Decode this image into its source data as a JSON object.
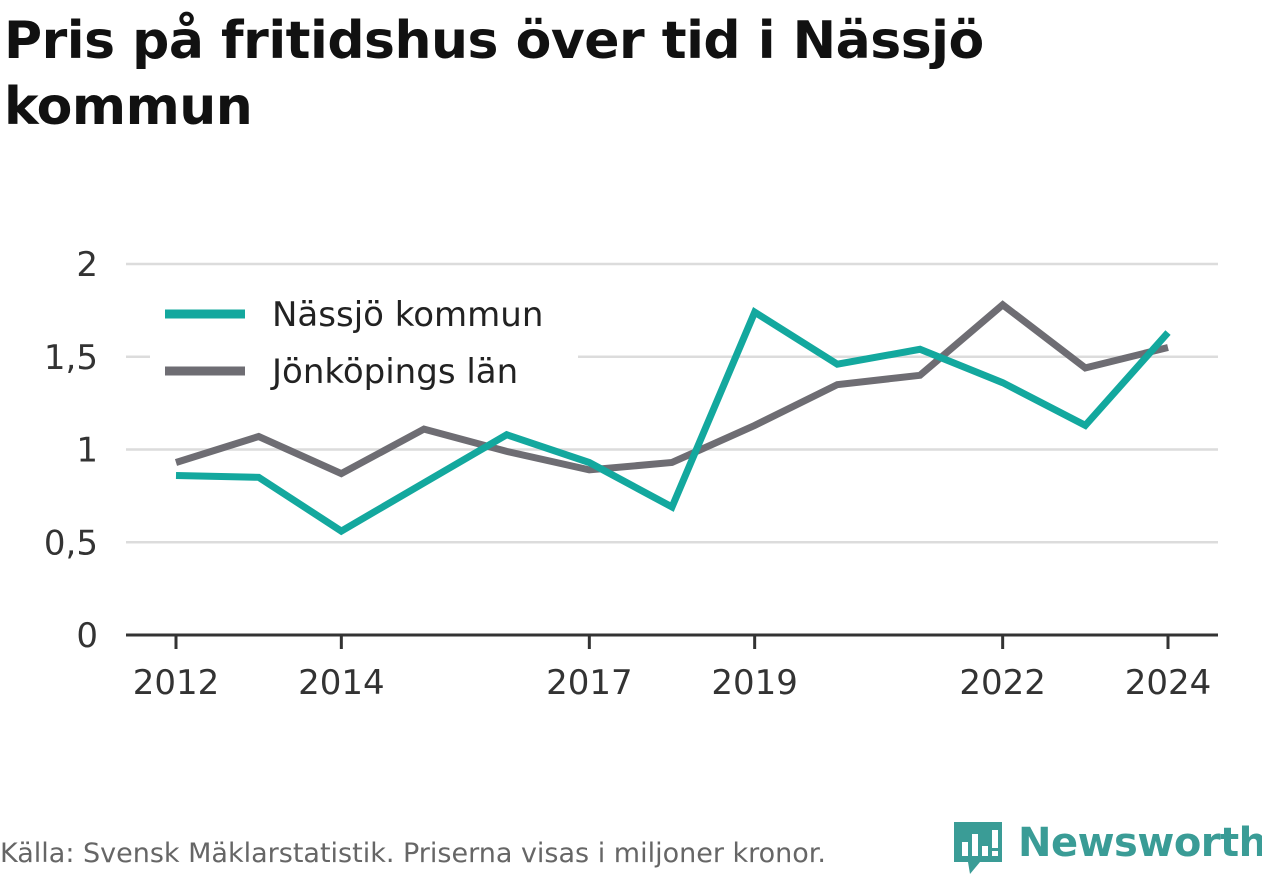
{
  "title": "Pris på fritidshus över tid i Nässjö kommun",
  "source": "Källa: Svensk Mäklarstatistik. Priserna visas i miljoner kronor.",
  "brand": {
    "name": "Newsworthy",
    "icon": "newsworthy-logo-icon",
    "color": "#3a9c96"
  },
  "chart_data": {
    "type": "line",
    "title": "Pris på fritidshus över tid i Nässjö kommun",
    "xlabel": "",
    "ylabel": "",
    "x": [
      2012,
      2013,
      2014,
      2015,
      2016,
      2017,
      2018,
      2019,
      2020,
      2021,
      2022,
      2023,
      2024
    ],
    "xticks": [
      2012,
      2014,
      2017,
      2019,
      2022,
      2024
    ],
    "xtick_labels": [
      "2012",
      "2014",
      "2017",
      "2019",
      "2022",
      "2024"
    ],
    "yticks": [
      0,
      0.5,
      1,
      1.5,
      2
    ],
    "ytick_labels": [
      "0",
      "0,5",
      "1",
      "1,5",
      "2"
    ],
    "ylim": [
      0,
      2
    ],
    "grid": true,
    "legend_position": "top-left",
    "series": [
      {
        "name": "Nässjö kommun",
        "color": "#13a89e",
        "values": [
          0.86,
          0.85,
          0.56,
          0.82,
          1.08,
          0.93,
          0.69,
          1.74,
          1.46,
          1.54,
          1.36,
          1.13,
          1.63
        ]
      },
      {
        "name": "Jönköpings län",
        "color": "#6e6d73",
        "values": [
          0.93,
          1.07,
          0.87,
          1.11,
          0.99,
          0.89,
          0.93,
          1.13,
          1.35,
          1.4,
          1.78,
          1.44,
          1.55
        ]
      }
    ]
  }
}
